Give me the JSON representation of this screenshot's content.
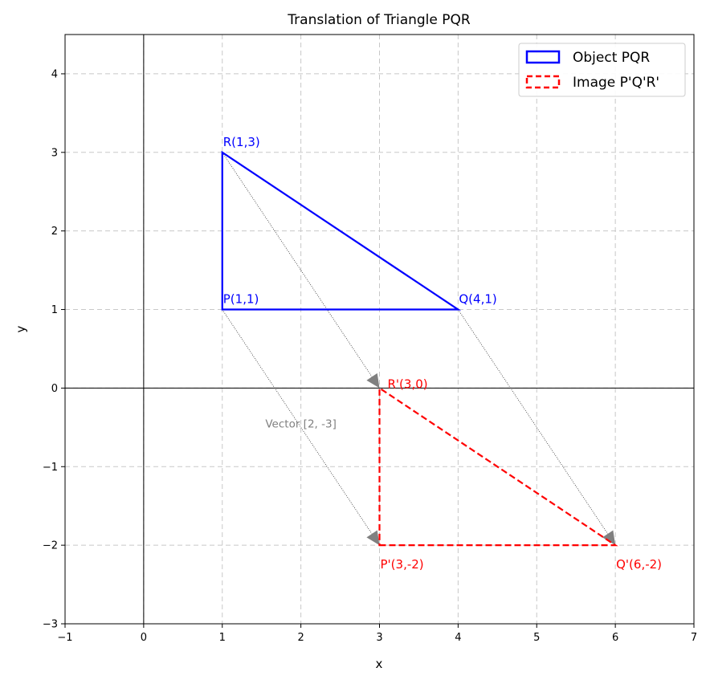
{
  "chart_data": {
    "type": "line",
    "title": "Translation of Triangle PQR",
    "xlabel": "x",
    "ylabel": "y",
    "xlim": [
      -1,
      7
    ],
    "ylim": [
      -3,
      4.5
    ],
    "xticks": [
      -1,
      0,
      1,
      2,
      3,
      4,
      5,
      6,
      7
    ],
    "yticks": [
      -3,
      -2,
      -1,
      0,
      1,
      2,
      3,
      4
    ],
    "xtick_labels": [
      "−1",
      "0",
      "1",
      "2",
      "3",
      "4",
      "5",
      "6",
      "7"
    ],
    "ytick_labels": [
      "−3",
      "−2",
      "−1",
      "0",
      "1",
      "2",
      "3",
      "4"
    ],
    "grid": true,
    "legend_position": "top-right",
    "series": [
      {
        "name": "Object PQR",
        "color": "#0000ff",
        "style": "solid",
        "points": [
          {
            "label": "P(1,1)",
            "x": 1,
            "y": 1
          },
          {
            "label": "Q(4,1)",
            "x": 4,
            "y": 1
          },
          {
            "label": "R(1,3)",
            "x": 1,
            "y": 3
          }
        ]
      },
      {
        "name": "Image P'Q'R'",
        "color": "#ff0000",
        "style": "dashed",
        "points": [
          {
            "label": "P'(3,-2)",
            "x": 3,
            "y": -2
          },
          {
            "label": "Q'(6,-2)",
            "x": 6,
            "y": -2
          },
          {
            "label": "R'(3,0)",
            "x": 3,
            "y": 0
          }
        ]
      }
    ],
    "translation_vector": [
      2,
      -3
    ],
    "vector_label": "Vector [2, -3]",
    "arrow_color": "#808080"
  }
}
